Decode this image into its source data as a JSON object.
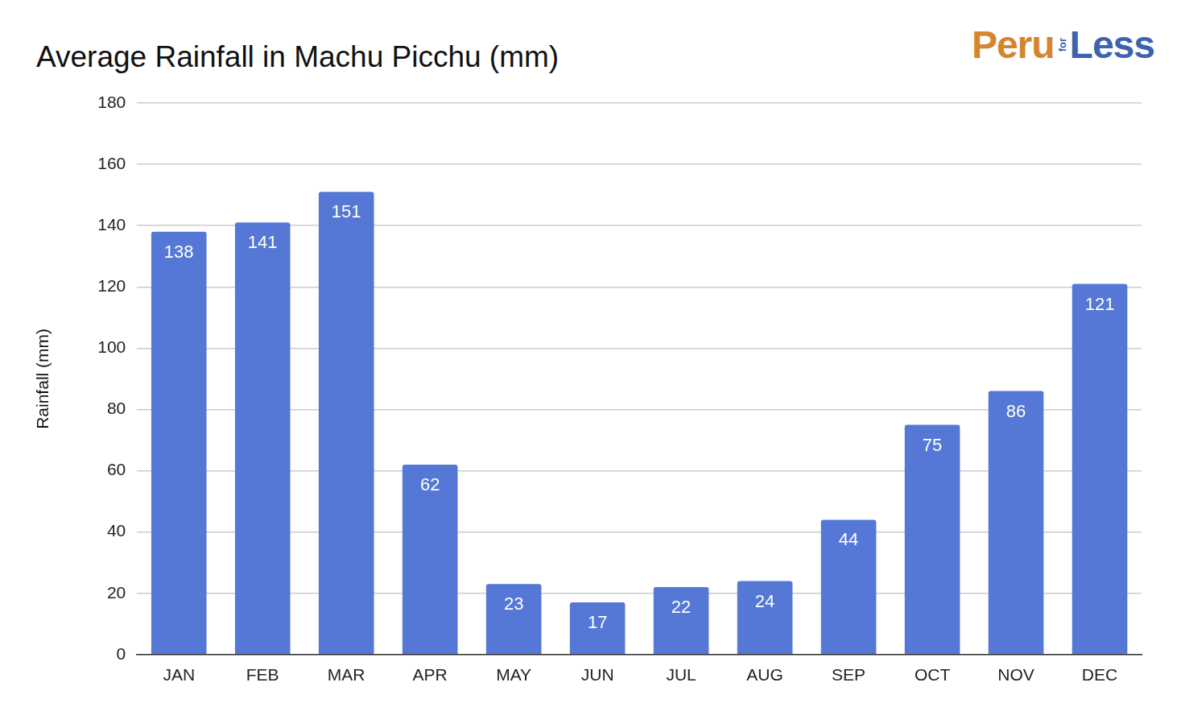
{
  "chart_data": {
    "type": "bar",
    "title": "Average Rainfall in Machu Picchu (mm)",
    "y_label": "Rainfall (mm)",
    "annotations": [
      "Peru",
      "for",
      "Less"
    ],
    "categories": [
      "JAN",
      "FEB",
      "MAR",
      "APR",
      "MAY",
      "JUN",
      "JUL",
      "AUG",
      "SEP",
      "OCT",
      "NOV",
      "DEC"
    ],
    "values": [
      138,
      141,
      151,
      62,
      23,
      17,
      22,
      24,
      44,
      75,
      86,
      121
    ],
    "color": "#5578d6",
    "ylim": [
      0,
      180
    ],
    "yticks": [
      0,
      20,
      40,
      60,
      80,
      100,
      120,
      140,
      160,
      180
    ],
    "grid": true,
    "data_labels": true
  }
}
